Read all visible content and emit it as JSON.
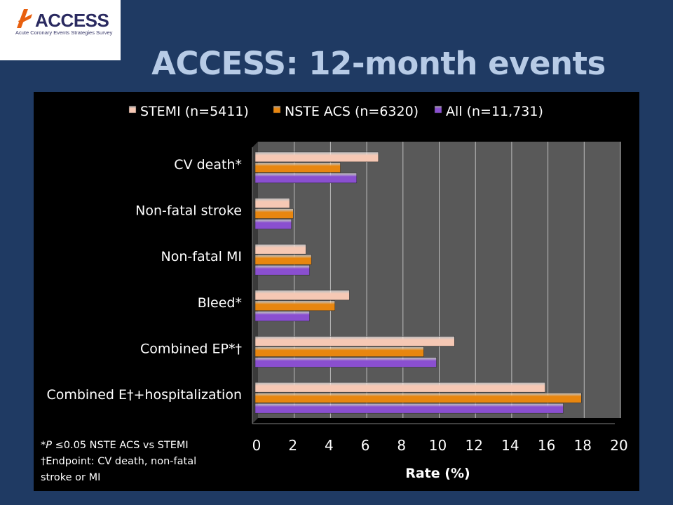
{
  "logo": {
    "name": "ACCESS",
    "subtitle": "Acute Coronary Events Strategies Survey"
  },
  "slide_title": "ACCESS: 12-month events",
  "colors": {
    "stemi": "#f6c8b4",
    "nste": "#e8860f",
    "all": "#8a4fd0",
    "plot_bg": "#595959",
    "grid": "#bfbfbf",
    "background": "#1f3a63"
  },
  "chart_data": {
    "type": "bar",
    "orientation": "horizontal",
    "categories": [
      "CV death*",
      "Non-fatal stroke",
      "Non-fatal MI",
      "Bleed*",
      "Combined EP*†",
      "Combined E†+hospitalization"
    ],
    "series": [
      {
        "name": "STEMI (n=5411)",
        "values": [
          6.8,
          1.9,
          2.8,
          5.2,
          11.0,
          16.0
        ]
      },
      {
        "name": "NSTE ACS (n=6320)",
        "values": [
          4.7,
          2.1,
          3.1,
          4.4,
          9.3,
          18.0
        ]
      },
      {
        "name": "All (n=11,731)",
        "values": [
          5.6,
          2.0,
          3.0,
          3.0,
          10.0,
          17.0
        ]
      }
    ],
    "xlabel": "Rate (%)",
    "xlim": [
      0,
      20
    ],
    "xticks": [
      0,
      2,
      4,
      6,
      8,
      10,
      12,
      14,
      16,
      18,
      20
    ],
    "grid": true,
    "legend_position": "top"
  },
  "footnotes": {
    "line1_prefix": "*",
    "line1_italic": "P",
    "line1_rest": " ≤0.05 NSTE ACS vs STEMI",
    "line2": "†Endpoint: CV death, non-fatal",
    "line3": "stroke or MI"
  }
}
